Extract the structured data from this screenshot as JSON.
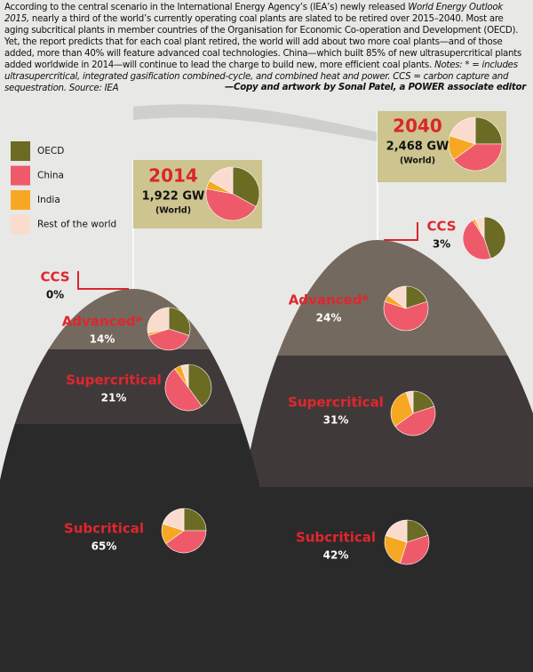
{
  "intro": [
    {
      "text": "According to the central scenario in the International Energy Agency’s (IEA’s) newly released ",
      "italic": false
    },
    {
      "text": "World Energy Outlook 2015,",
      "italic": true
    },
    {
      "text": " nearly a third of the world’s currently operating coal plants are slated to be retired over 2015–2040. Most are aging subcritical plants in member countries of the Organisation for Economic Co-operation and Development (OECD). Yet, the report predicts that for each coal plant retired, the world will add about two more coal plants—and of those added, more than 40% will feature advanced coal technologies. China—which built 85% of new ultrasupercritical plants added worldwide in 2014—will continue to lead the charge to build new, more efficient coal plants. ",
      "italic": false
    },
    {
      "text": "Notes: * = includes ultrasupercritical, integrated gasification combined-cycle, and combined heat and power. CCS = carbon capture and sequestration. Source: IEA",
      "italic": true
    }
  ],
  "credit": "—Copy and artwork by Sonal Patel, a POWER associate editor",
  "legend": [
    {
      "name": "OECD",
      "color": "#6b6b23"
    },
    {
      "name": "China",
      "color": "#ef5a6b"
    },
    {
      "name": "India",
      "color": "#f7a823"
    },
    {
      "name": "Rest of the world",
      "color": "#f9dccd"
    }
  ],
  "years": [
    {
      "label": "2014",
      "total": "1,922 GW",
      "world": "(World)",
      "world_pie": [
        33,
        45,
        5,
        17
      ],
      "tiers": [
        {
          "name": "CCS",
          "share": "0%"
        },
        {
          "name": "Advanced*",
          "share": "14%",
          "pie": [
            30,
            40,
            2,
            28
          ]
        },
        {
          "name": "Supercritical",
          "share": "21%",
          "pie": [
            40,
            50,
            5,
            5
          ]
        },
        {
          "name": "Subcritical",
          "share": "65%",
          "pie": [
            25,
            40,
            15,
            20
          ]
        }
      ]
    },
    {
      "label": "2040",
      "total": "2,468 GW",
      "world": "(World)",
      "world_pie": [
        25,
        40,
        15,
        20
      ],
      "tiers": [
        {
          "name": "CCS",
          "share": "3%",
          "pie": [
            45,
            46,
            2,
            7
          ]
        },
        {
          "name": "Advanced*",
          "share": "24%",
          "pie": [
            20,
            60,
            5,
            15
          ]
        },
        {
          "name": "Supercritical",
          "share": "31%",
          "pie": [
            20,
            45,
            30,
            5
          ]
        },
        {
          "name": "Subcritical",
          "share": "42%",
          "pie": [
            20,
            35,
            25,
            20
          ]
        }
      ]
    }
  ]
}
